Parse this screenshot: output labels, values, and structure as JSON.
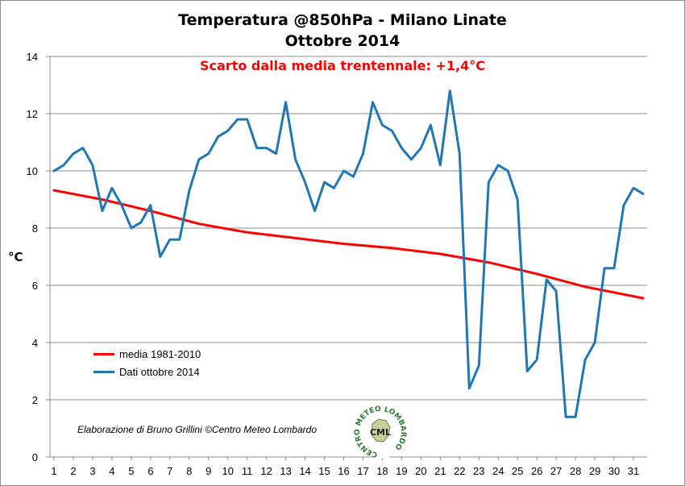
{
  "title": "Temperatura @850hPa - Milano Linate",
  "subtitle": "Ottobre 2014",
  "annotation": "Scarto dalla media trentennale: +1,4°C",
  "credit": "Elaborazione di Bruno Grillini ©Centro Meteo Lombardo",
  "logo": {
    "ring_text": "CENTRO METEO LOMBARDO",
    "center_text": "CML"
  },
  "chart_data": {
    "type": "line",
    "title": "Temperatura @850hPa - Milano Linate",
    "subtitle": "Ottobre 2014",
    "xlabel": "",
    "ylabel": "°C",
    "ylim": [
      0,
      14
    ],
    "yticks": [
      0,
      2,
      4,
      6,
      8,
      10,
      12,
      14
    ],
    "xlim": [
      1,
      31.5
    ],
    "xticks": [
      1,
      2,
      3,
      4,
      5,
      6,
      7,
      8,
      9,
      10,
      11,
      12,
      13,
      14,
      15,
      16,
      17,
      18,
      19,
      20,
      21,
      22,
      23,
      24,
      25,
      26,
      27,
      28,
      29,
      30,
      31
    ],
    "grid": "horizontal",
    "legend_position": "lower-left",
    "series": [
      {
        "name": "media 1981-2010",
        "color": "#ff0000",
        "x": [
          1,
          3.5,
          6,
          8.5,
          11,
          13.5,
          16,
          18.5,
          21,
          23.5,
          26,
          28.5,
          31.5
        ],
        "values": [
          9.32,
          9.0,
          8.6,
          8.15,
          7.85,
          7.65,
          7.45,
          7.3,
          7.1,
          6.8,
          6.4,
          5.95,
          5.55
        ]
      },
      {
        "name": "Dati ottobre 2014",
        "color": "#1f77b4",
        "x": [
          1,
          1.5,
          2,
          2.5,
          3,
          3.5,
          4,
          4.5,
          5,
          5.5,
          6,
          6.5,
          7,
          7.5,
          8,
          8.5,
          9,
          9.5,
          10,
          10.5,
          11,
          11.5,
          12,
          12.5,
          13,
          13.5,
          14,
          14.5,
          15,
          15.5,
          16,
          16.5,
          17,
          17.5,
          18,
          18.5,
          19,
          19.5,
          20,
          20.5,
          21,
          21.5,
          22,
          22.5,
          23,
          23.5,
          24,
          24.5,
          25,
          25.5,
          26,
          26.5,
          27,
          27.5,
          28,
          28.5,
          29,
          29.5,
          30,
          30.5,
          31,
          31.5
        ],
        "values": [
          10.0,
          10.2,
          10.6,
          10.8,
          10.2,
          8.6,
          9.4,
          8.8,
          8.0,
          8.2,
          8.8,
          7.0,
          7.6,
          7.6,
          9.3,
          10.4,
          10.6,
          11.2,
          11.4,
          11.8,
          11.8,
          10.8,
          10.8,
          10.6,
          12.4,
          10.4,
          9.6,
          8.6,
          9.6,
          9.4,
          10.0,
          9.8,
          10.6,
          12.4,
          11.6,
          11.4,
          10.8,
          10.4,
          10.8,
          11.6,
          10.2,
          12.8,
          10.6,
          2.4,
          3.2,
          9.6,
          10.2,
          10.0,
          9.0,
          3.0,
          3.4,
          6.2,
          5.8,
          1.4,
          1.4,
          3.4,
          4.0,
          6.6,
          6.6,
          8.8,
          9.4,
          9.2
        ]
      }
    ]
  }
}
